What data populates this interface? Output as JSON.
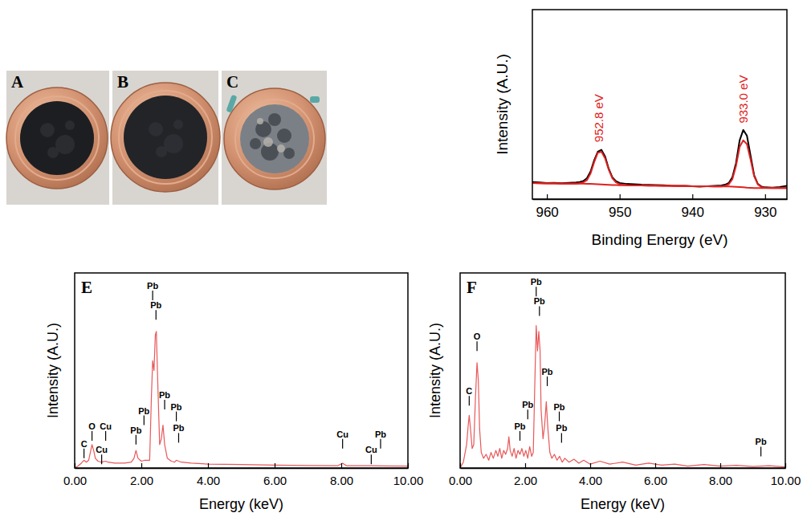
{
  "photos": [
    {
      "label": "A"
    },
    {
      "label": "B"
    },
    {
      "label": "C"
    }
  ],
  "chart_data": [
    {
      "type": "line",
      "xlabel": "Binding Energy (eV)",
      "ylabel": "Intensity (A.U.)",
      "xlim": [
        962,
        927
      ],
      "xticks": [
        960,
        950,
        940,
        930
      ],
      "ylim": [
        0,
        1
      ],
      "tick_labels": "x",
      "x": [
        962,
        961,
        960,
        959,
        958,
        957,
        956,
        955.5,
        955,
        954.5,
        954,
        953.5,
        953,
        952.5,
        952,
        951.5,
        951,
        950.5,
        950,
        949,
        948,
        947,
        946,
        945,
        944,
        943,
        942,
        941,
        940,
        939,
        938,
        937,
        936,
        935.5,
        935,
        934.5,
        934,
        933.5,
        933,
        932.5,
        932,
        931.5,
        931,
        930.5,
        930,
        929,
        928,
        927
      ],
      "series": [
        {
          "color": "#000000",
          "values": [
            0.09,
            0.088,
            0.085,
            0.086,
            0.084,
            0.086,
            0.088,
            0.09,
            0.095,
            0.11,
            0.145,
            0.205,
            0.25,
            0.26,
            0.225,
            0.16,
            0.115,
            0.095,
            0.085,
            0.08,
            0.078,
            0.076,
            0.075,
            0.074,
            0.073,
            0.071,
            0.07,
            0.07,
            0.068,
            0.066,
            0.068,
            0.07,
            0.072,
            0.076,
            0.085,
            0.115,
            0.19,
            0.31,
            0.365,
            0.335,
            0.23,
            0.125,
            0.08,
            0.066,
            0.062,
            0.06,
            0.064,
            0.07
          ]
        },
        {
          "color": "#e02020",
          "values": [
            0.085,
            0.084,
            0.083,
            0.083,
            0.082,
            0.082,
            0.082,
            0.084,
            0.088,
            0.1,
            0.135,
            0.195,
            0.245,
            0.25,
            0.215,
            0.155,
            0.11,
            0.088,
            0.078,
            0.073,
            0.072,
            0.072,
            0.071,
            0.071,
            0.07,
            0.07,
            0.069,
            0.069,
            0.068,
            0.068,
            0.068,
            0.067,
            0.067,
            0.07,
            0.078,
            0.105,
            0.175,
            0.275,
            0.31,
            0.29,
            0.21,
            0.12,
            0.078,
            0.063,
            0.059,
            0.058,
            0.058,
            0.058
          ]
        },
        {
          "color": "#e02020",
          "values": [
            0.085,
            0.084,
            0.083,
            0.083,
            0.082,
            0.082,
            0.082,
            0.082,
            0.082,
            0.081,
            0.08,
            0.079,
            0.078,
            0.077,
            0.076,
            0.075,
            0.074,
            0.074,
            0.073,
            0.073,
            0.072,
            0.072,
            0.071,
            0.071,
            0.07,
            0.07,
            0.069,
            0.069,
            0.068,
            0.068,
            0.068,
            0.067,
            0.067,
            0.067,
            0.067,
            0.066,
            0.065,
            0.064,
            0.062,
            0.06,
            0.059,
            0.058,
            0.058,
            0.058,
            0.058,
            0.058,
            0.058,
            0.058
          ]
        }
      ],
      "annotations": [
        {
          "text": "952.8 eV",
          "x": 952.8,
          "y": 0.3
        },
        {
          "text": "933.0 eV",
          "x": 933.0,
          "y": 0.4
        }
      ]
    },
    {
      "type": "line",
      "panel": "E",
      "xlabel": "Energy (keV)",
      "ylabel": "Intensity (A.U.)",
      "xlim": [
        0,
        10
      ],
      "xticks": [
        {
          "value": 0,
          "label": "0.00"
        },
        {
          "value": 2,
          "label": "2.00"
        },
        {
          "value": 4,
          "label": "4.00"
        },
        {
          "value": 6,
          "label": "6.00"
        },
        {
          "value": 8,
          "label": "8.00"
        },
        {
          "value": 10,
          "label": "10.00"
        }
      ],
      "ylim": [
        0,
        1
      ],
      "tick_labels": "x",
      "color": "#e8585a",
      "x": [
        0,
        0.1,
        0.2,
        0.28,
        0.35,
        0.42,
        0.47,
        0.52,
        0.57,
        0.62,
        0.7,
        0.8,
        0.93,
        1.0,
        1.2,
        1.5,
        1.7,
        1.78,
        1.84,
        1.9,
        2.0,
        2.1,
        2.2,
        2.25,
        2.3,
        2.34,
        2.38,
        2.42,
        2.45,
        2.5,
        2.55,
        2.6,
        2.65,
        2.7,
        2.78,
        2.9,
        3.0,
        3.05,
        3.12,
        3.2,
        3.5,
        4.0,
        5.0,
        6.0,
        7.0,
        7.9,
        8.04,
        8.15,
        8.9,
        9.2,
        10.0
      ],
      "values": [
        0,
        0.01,
        0.025,
        0.04,
        0.03,
        0.04,
        0.08,
        0.12,
        0.09,
        0.05,
        0.035,
        0.03,
        0.035,
        0.03,
        0.025,
        0.025,
        0.03,
        0.05,
        0.09,
        0.05,
        0.035,
        0.04,
        0.04,
        0.04,
        0.35,
        0.55,
        0.5,
        0.68,
        0.7,
        0.4,
        0.12,
        0.15,
        0.22,
        0.12,
        0.05,
        0.035,
        0.03,
        0.04,
        0.035,
        0.03,
        0.025,
        0.02,
        0.018,
        0.015,
        0.013,
        0.012,
        0.025,
        0.012,
        0.012,
        0.011,
        0.01
      ],
      "peak_labels": [
        {
          "text": "C",
          "x": 0.28,
          "y": 0.05
        },
        {
          "text": "O",
          "x": 0.52,
          "y": 0.14
        },
        {
          "text": "Cu",
          "x": 0.93,
          "y": 0.14
        },
        {
          "text": "Cu",
          "x": 0.81,
          "y": 0.02
        },
        {
          "text": "Pb",
          "x": 1.84,
          "y": 0.12
        },
        {
          "text": "Pb",
          "x": 2.08,
          "y": 0.22
        },
        {
          "text": "Pb",
          "x": 2.34,
          "y": 0.86
        },
        {
          "text": "Pb",
          "x": 2.44,
          "y": 0.76
        },
        {
          "text": "Pb",
          "x": 2.7,
          "y": 0.3
        },
        {
          "text": "Pb",
          "x": 3.05,
          "y": 0.24
        },
        {
          "text": "Pb",
          "x": 3.12,
          "y": 0.13
        },
        {
          "text": "Cu",
          "x": 8.04,
          "y": 0.1
        },
        {
          "text": "Cu",
          "x": 8.9,
          "y": 0.02
        },
        {
          "text": "Pb",
          "x": 9.18,
          "y": 0.1
        }
      ]
    },
    {
      "type": "line",
      "panel": "F",
      "xlabel": "Energy (keV)",
      "ylabel": "Intensity (A.U.)",
      "xlim": [
        0,
        10
      ],
      "xticks": [
        {
          "value": 0,
          "label": "0.00"
        },
        {
          "value": 2,
          "label": "2.00"
        },
        {
          "value": 4,
          "label": "4.00"
        },
        {
          "value": 6,
          "label": "6.00"
        },
        {
          "value": 8,
          "label": "8.00"
        },
        {
          "value": 10,
          "label": "10.00"
        }
      ],
      "ylim": [
        0,
        1
      ],
      "tick_labels": "x",
      "color": "#e8585a",
      "x": [
        0,
        0.1,
        0.2,
        0.25,
        0.28,
        0.32,
        0.37,
        0.42,
        0.47,
        0.52,
        0.56,
        0.6,
        0.65,
        0.72,
        0.8,
        0.88,
        0.95,
        1.02,
        1.1,
        1.16,
        1.22,
        1.28,
        1.34,
        1.4,
        1.46,
        1.5,
        1.54,
        1.6,
        1.66,
        1.72,
        1.78,
        1.84,
        1.9,
        1.96,
        2.02,
        2.08,
        2.14,
        2.2,
        2.25,
        2.3,
        2.34,
        2.38,
        2.42,
        2.46,
        2.49,
        2.55,
        2.6,
        2.65,
        2.7,
        2.76,
        2.82,
        2.9,
        2.98,
        3.06,
        3.14,
        3.22,
        3.35,
        3.5,
        3.65,
        3.8,
        4.0,
        4.3,
        4.6,
        5.0,
        5.4,
        5.8,
        6.2,
        6.6,
        7.0,
        7.5,
        8.0,
        8.5,
        9.0,
        9.5,
        10.0
      ],
      "values": [
        0,
        0.03,
        0.12,
        0.22,
        0.27,
        0.2,
        0.1,
        0.12,
        0.35,
        0.54,
        0.45,
        0.2,
        0.08,
        0.05,
        0.07,
        0.04,
        0.08,
        0.05,
        0.09,
        0.06,
        0.1,
        0.05,
        0.09,
        0.07,
        0.1,
        0.16,
        0.09,
        0.06,
        0.1,
        0.05,
        0.09,
        0.07,
        0.1,
        0.06,
        0.09,
        0.05,
        0.11,
        0.06,
        0.08,
        0.45,
        0.73,
        0.6,
        0.7,
        0.6,
        0.3,
        0.15,
        0.22,
        0.34,
        0.2,
        0.08,
        0.05,
        0.07,
        0.04,
        0.06,
        0.03,
        0.05,
        0.03,
        0.045,
        0.025,
        0.04,
        0.02,
        0.035,
        0.02,
        0.03,
        0.015,
        0.025,
        0.015,
        0.02,
        0.01,
        0.018,
        0.01,
        0.014,
        0.008,
        0.012,
        0.006
      ],
      "peak_labels": [
        {
          "text": "C",
          "x": 0.28,
          "y": 0.32
        },
        {
          "text": "O",
          "x": 0.52,
          "y": 0.6
        },
        {
          "text": "Pb",
          "x": 1.84,
          "y": 0.14
        },
        {
          "text": "Pb",
          "x": 2.08,
          "y": 0.25
        },
        {
          "text": "Pb",
          "x": 2.34,
          "y": 0.88
        },
        {
          "text": "Pb",
          "x": 2.44,
          "y": 0.78
        },
        {
          "text": "Pb",
          "x": 2.68,
          "y": 0.42
        },
        {
          "text": "Pb",
          "x": 3.05,
          "y": 0.24
        },
        {
          "text": "Pb",
          "x": 3.12,
          "y": 0.13
        },
        {
          "text": "Pb",
          "x": 9.25,
          "y": 0.06
        }
      ]
    }
  ]
}
